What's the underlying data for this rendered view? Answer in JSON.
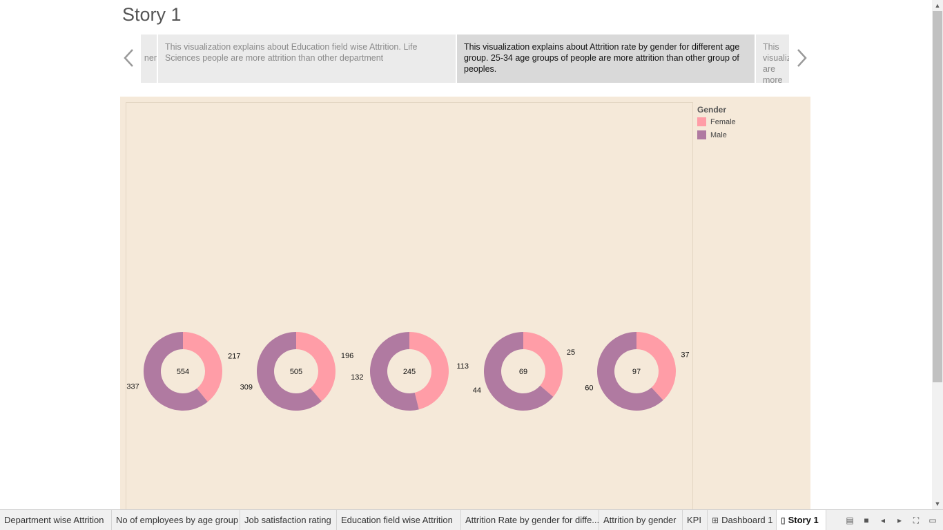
{
  "story": {
    "title": "Story 1"
  },
  "captions": {
    "partial_left": "ner",
    "item1": "This visualization explains about Education field wise Attrition. Life Sciences people are more attrition than other department",
    "item2": "This visualization explains about Attrition rate by gender for different age group. 25-34 age groups of people are more attrition than other group of peoples.",
    "partial_right": "This visualization are more"
  },
  "legend": {
    "title": "Gender",
    "items": [
      {
        "label": "Female",
        "color": "#ff9da7"
      },
      {
        "label": "Male",
        "color": "#b07aa1"
      }
    ]
  },
  "chart_data": {
    "type": "pie",
    "donut": true,
    "series": [
      {
        "total": 554,
        "female": 217,
        "male": 337
      },
      {
        "total": 505,
        "female": 196,
        "male": 309
      },
      {
        "total": 245,
        "female": 113,
        "male": 132
      },
      {
        "total": 69,
        "female": 25,
        "male": 44
      },
      {
        "total": 97,
        "female": 37,
        "male": 60
      }
    ],
    "colors": {
      "female": "#ff9da7",
      "male": "#b07aa1"
    },
    "legend": "top-right"
  },
  "tabs": [
    {
      "label": "Department wise Attrition",
      "icon": ""
    },
    {
      "label": "No of employees by age group",
      "icon": ""
    },
    {
      "label": "Job satisfaction rating",
      "icon": ""
    },
    {
      "label": "Education field wise Attrition",
      "icon": ""
    },
    {
      "label": "Attrition Rate by gender for diffe...",
      "icon": ""
    },
    {
      "label": "Attrition by gender",
      "icon": ""
    },
    {
      "label": "KPI",
      "icon": ""
    },
    {
      "label": "Dashboard 1",
      "icon": "dashboard-icon"
    },
    {
      "label": "Story 1",
      "icon": "story-icon"
    }
  ]
}
